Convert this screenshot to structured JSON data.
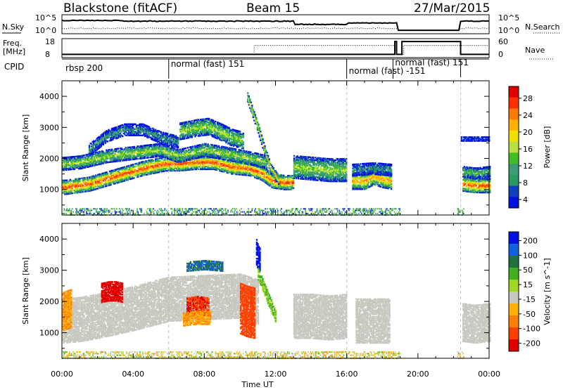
{
  "header": {
    "station": "Blackstone (fitACF)",
    "beam": "Beam 15",
    "date": "27/Mar/2015"
  },
  "nsky_panel": {
    "left_label": "N.Sky",
    "right_label": "N.Search",
    "left_ticks": [
      "10^5",
      "10^0"
    ],
    "right_ticks": [
      "10^5",
      "10^0"
    ]
  },
  "freq_panel": {
    "left_label": "Freq.",
    "left_unit": "[MHz]",
    "right_label": "Nave",
    "left_ticks": [
      "18",
      "8"
    ],
    "right_ticks": [
      "60",
      "0"
    ]
  },
  "cpid_panel": {
    "label": "CPID",
    "modes": [
      {
        "name": "rbsp 200",
        "start_hour": 0.0
      },
      {
        "name": "normal (fast) 151",
        "start_hour": 6.0
      },
      {
        "name": "normal (fast) -151",
        "start_hour": 16.0
      },
      {
        "name": "normal (fast) 151",
        "start_hour": 18.6
      }
    ]
  },
  "power_colorbar": {
    "title": "Power [dB]",
    "ticks": [
      "28",
      "24",
      "20",
      "16",
      "12",
      "8",
      "4"
    ],
    "colors": [
      "#e00000",
      "#ff3000",
      "#ff7a00",
      "#ffb000",
      "#f0e000",
      "#b8e040",
      "#40c020",
      "#3c9c78",
      "#2a9a60",
      "#1040c0",
      "#0010e0"
    ]
  },
  "velocity_colorbar": {
    "title": "Velocity [m s^-1]",
    "ticks": [
      "200",
      "100",
      "50",
      "15",
      "-15",
      "-50",
      "-100",
      "-200"
    ],
    "colors": [
      "#0010e0",
      "#1060e0",
      "#207040",
      "#40b020",
      "#a0d820",
      "#c8c8c0",
      "#ffb000",
      "#ff8000",
      "#ff4000",
      "#e00000"
    ]
  },
  "time_axis": {
    "title": "Time UT",
    "tick_labels": [
      "00:00",
      "04:00",
      "08:00",
      "12:00",
      "16:00",
      "20:00",
      "00:00"
    ]
  },
  "chart_data": [
    {
      "type": "heatmap",
      "title": "Blackstone (fitACF) Beam 15 27/Mar/2015",
      "xlabel": "Time UT",
      "ylabel": "Slant Range [km]",
      "xlim": [
        0,
        24
      ],
      "ylim": [
        180,
        4500
      ],
      "yticks": [
        1000,
        2000,
        3000,
        4000
      ],
      "colorbar": "Power [dB]",
      "grid": false,
      "bands": [
        {
          "t": [
            0.0,
            0.2,
            1.5,
            3.0,
            4.5,
            5.8,
            6.5,
            7.5,
            8.5,
            9.5,
            10.5,
            11.2,
            11.8,
            12.5,
            13.0
          ],
          "r": [
            1100,
            1100,
            1200,
            1450,
            1700,
            1850,
            1850,
            1900,
            1900,
            1750,
            1700,
            1550,
            1300,
            1250,
            1250
          ],
          "w": 220,
          "v": 28
        },
        {
          "t": [
            0.0,
            1.0,
            2.5,
            4.0,
            5.5,
            6.5,
            8.0,
            9.5,
            10.8,
            11.5
          ],
          "r": [
            1850,
            1900,
            2100,
            2200,
            2300,
            2100,
            2300,
            2150,
            2000,
            1900
          ],
          "w": 200,
          "v": 16
        },
        {
          "t": [
            1.5,
            2.5,
            3.5,
            4.5,
            5.5,
            6.5
          ],
          "r": [
            2300,
            2750,
            2950,
            2950,
            2700,
            2550
          ],
          "w": 180,
          "v": 8
        },
        {
          "t": [
            6.6,
            7.5,
            8.2,
            9.0,
            9.5,
            10.2
          ],
          "r": [
            2900,
            3000,
            3050,
            2850,
            2700,
            2600
          ],
          "w": 260,
          "v": 16
        },
        {
          "t": [
            10.4,
            11.0,
            11.3,
            11.7,
            12.2
          ],
          "r": [
            4000,
            3000,
            2400,
            1700,
            1300
          ],
          "w": 150,
          "v": 20
        },
        {
          "t": [
            13.0,
            14.0,
            15.0,
            16.0
          ],
          "r": [
            1750,
            1700,
            1650,
            1650
          ],
          "w": 360,
          "v": 16
        },
        {
          "t": [
            16.3,
            17.0,
            17.5,
            18.0,
            18.5
          ],
          "r": [
            1300,
            1300,
            1450,
            1350,
            1300
          ],
          "w": 260,
          "v": 24
        },
        {
          "t": [
            16.3,
            17.5,
            18.5
          ],
          "r": [
            1650,
            1700,
            1650
          ],
          "w": 180,
          "v": 8
        },
        {
          "t": [
            22.5,
            23.2,
            24.0
          ],
          "r": [
            1200,
            1150,
            1150
          ],
          "w": 220,
          "v": 28
        },
        {
          "t": [
            22.5,
            23.2,
            24.0
          ],
          "r": [
            1600,
            1550,
            1600
          ],
          "w": 160,
          "v": 12
        },
        {
          "t": [
            22.4,
            23.2,
            24.0
          ],
          "r": [
            2650,
            2650,
            2650
          ],
          "w": 60,
          "v": 4
        }
      ]
    },
    {
      "type": "heatmap",
      "xlabel": "Time UT",
      "ylabel": "Slant Range [km]",
      "xlim": [
        0,
        24
      ],
      "ylim": [
        180,
        4500
      ],
      "yticks": [
        1000,
        2000,
        3000,
        4000
      ],
      "colorbar": "Velocity [m s^-1]",
      "grid": false,
      "bands": [
        {
          "t": [
            0.0,
            1.0,
            2.0,
            4.0,
            6.0,
            8.0,
            10.0,
            11.0
          ],
          "r": [
            1400,
            1450,
            1550,
            1800,
            2100,
            2150,
            2200,
            2000
          ],
          "w": 700,
          "v": 0
        },
        {
          "t": [
            13.0,
            14.0,
            15.0,
            16.0
          ],
          "r": [
            1550,
            1550,
            1500,
            1550
          ],
          "w": 700,
          "v": 0
        },
        {
          "t": [
            16.5,
            17.5,
            18.4
          ],
          "r": [
            1400,
            1400,
            1400
          ],
          "w": 700,
          "v": 0
        },
        {
          "t": [
            22.5,
            23.2,
            24.0
          ],
          "r": [
            1350,
            1300,
            1350
          ],
          "w": 600,
          "v": 0
        },
        {
          "t": [
            2.2,
            2.6,
            3.0,
            3.4
          ],
          "r": [
            2300,
            2350,
            2350,
            2300
          ],
          "w": 300,
          "v": -200
        },
        {
          "t": [
            0.0,
            0.5
          ],
          "r": [
            1700,
            1800
          ],
          "w": 600,
          "v": -50
        },
        {
          "t": [
            7.0,
            7.6,
            8.2
          ],
          "r": [
            1850,
            1900,
            1850
          ],
          "w": 280,
          "v": -150
        },
        {
          "t": [
            6.8,
            7.5,
            8.3
          ],
          "r": [
            1450,
            1500,
            1500
          ],
          "w": 200,
          "v": -50
        },
        {
          "t": [
            10.0,
            10.4,
            10.8
          ],
          "r": [
            1800,
            1700,
            1650
          ],
          "w": 800,
          "v": -120
        },
        {
          "t": [
            7.0,
            8.0,
            9.0
          ],
          "r": [
            3150,
            3200,
            3150
          ],
          "w": 150,
          "v": 150
        },
        {
          "t": [
            10.9,
            11.1
          ],
          "r": [
            3600,
            3300
          ],
          "w": 400,
          "v": 250
        },
        {
          "t": [
            11.0,
            11.5,
            12.0
          ],
          "r": [
            2900,
            2200,
            1500
          ],
          "w": 180,
          "v": 50
        }
      ]
    }
  ]
}
